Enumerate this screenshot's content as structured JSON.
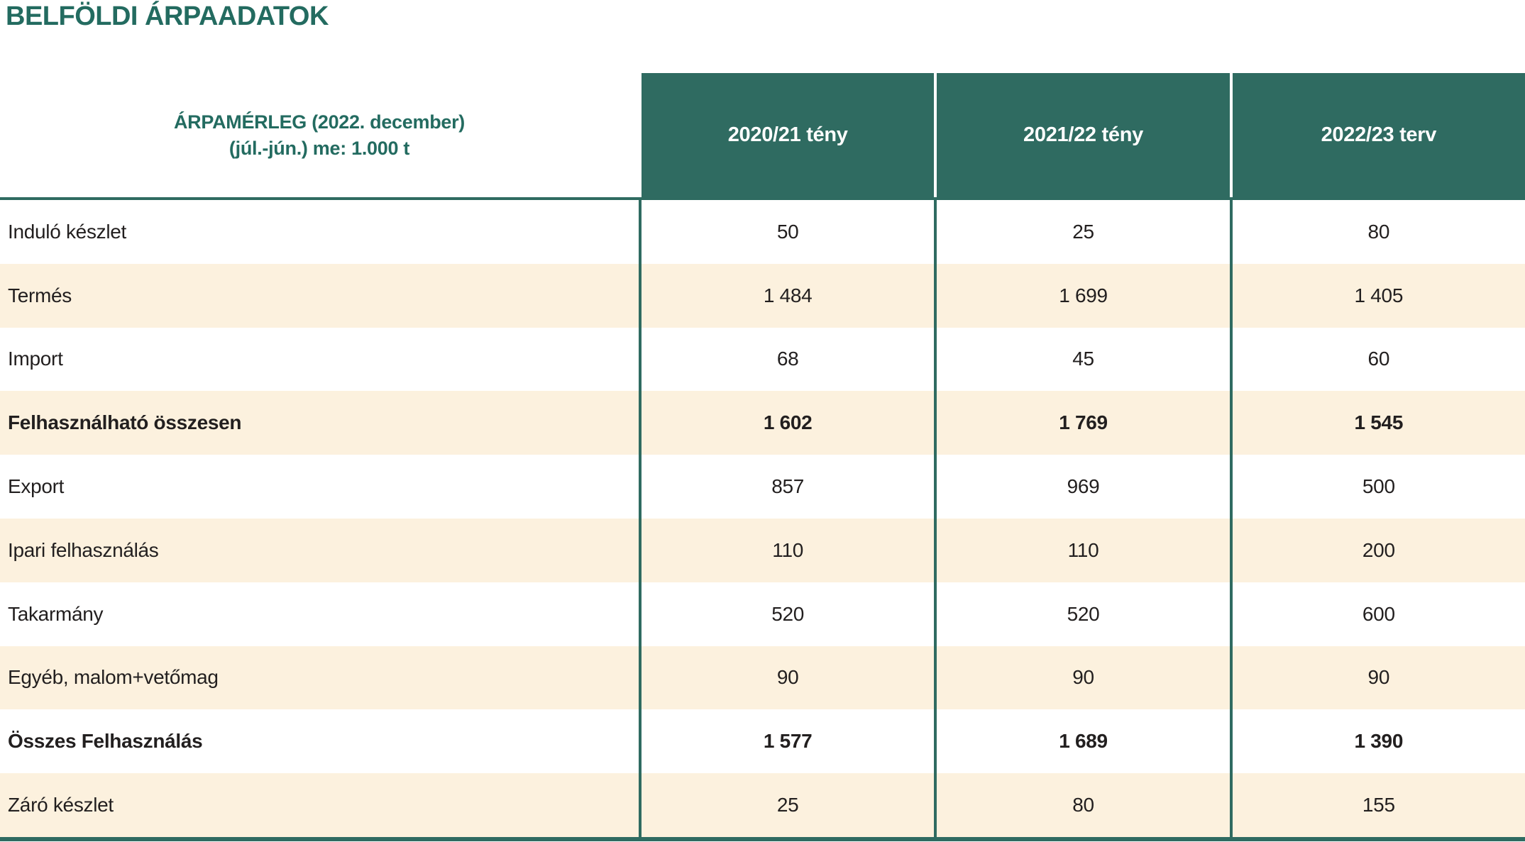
{
  "page_title": "BELFÖLDI ÁRPAADATOK",
  "colors": {
    "teal": "#2F6B61",
    "teal_text": "#236B60",
    "cream_row": "#FCF1DE",
    "white_row": "#FFFFFF",
    "body_text": "#221F1F",
    "header_text": "#FFFFFF"
  },
  "table": {
    "corner": {
      "line1": "ÁRPAMÉRLEG (2022. december)",
      "line2": "(júl.-jún.) me: 1.000 t"
    },
    "columns": [
      "2020/21 tény",
      "2021/22 tény",
      "2022/23 terv"
    ],
    "rows": [
      {
        "label": "Induló készlet",
        "values": [
          "50",
          "25",
          "80"
        ],
        "bold": false
      },
      {
        "label": "Termés",
        "values": [
          "1 484",
          "1 699",
          "1 405"
        ],
        "bold": false
      },
      {
        "label": "Import",
        "values": [
          "68",
          "45",
          "60"
        ],
        "bold": false
      },
      {
        "label": "Felhasználható összesen",
        "values": [
          "1 602",
          "1 769",
          "1 545"
        ],
        "bold": true
      },
      {
        "label": "Export",
        "values": [
          "857",
          "969",
          "500"
        ],
        "bold": false
      },
      {
        "label": "Ipari felhasználás",
        "values": [
          "110",
          "110",
          "200"
        ],
        "bold": false
      },
      {
        "label": "Takarmány",
        "values": [
          "520",
          "520",
          "600"
        ],
        "bold": false
      },
      {
        "label": "Egyéb, malom+vetőmag",
        "values": [
          "90",
          "90",
          "90"
        ],
        "bold": false
      },
      {
        "label": "Összes Felhasználás",
        "values": [
          "1 577",
          "1 689",
          "1 390"
        ],
        "bold": true
      },
      {
        "label": "Záró készlet",
        "values": [
          "25",
          "80",
          "155"
        ],
        "bold": false
      }
    ]
  }
}
